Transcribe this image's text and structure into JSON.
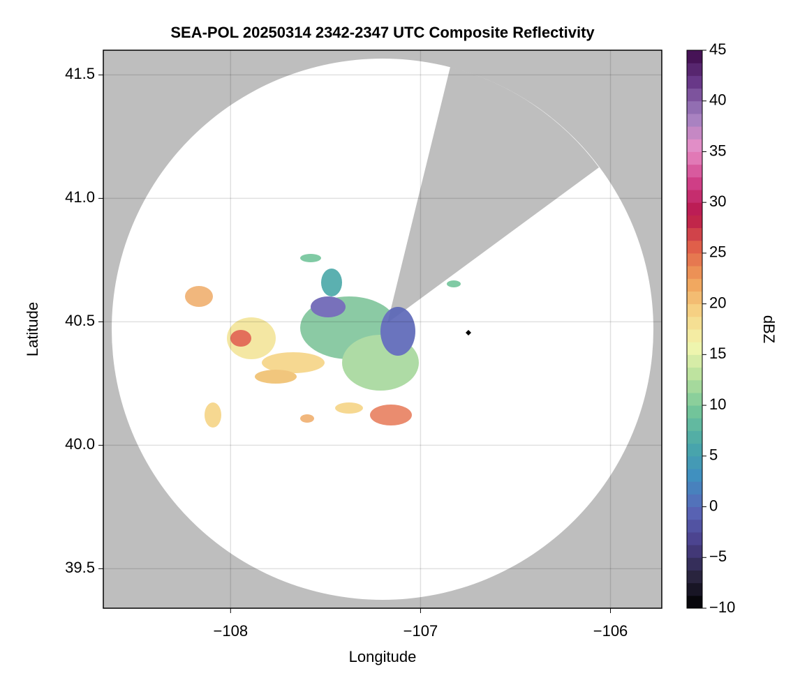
{
  "chart_data": {
    "type": "radar-map",
    "title": "SEA-POL 20250314 2342-2347 UTC Composite Reflectivity",
    "x_label": "Longitude",
    "y_label": "Latitude",
    "xlim": [
      -108.67,
      -105.73
    ],
    "xticks": [
      {
        "value": -108,
        "label": "−108"
      },
      {
        "value": -107,
        "label": "−107"
      },
      {
        "value": -106,
        "label": "−106"
      }
    ],
    "ylim": [
      39.34,
      41.6
    ],
    "yticks": [
      39.5,
      {
        "value": 40.0,
        "label": "40.0"
      },
      40.5,
      {
        "value": 41.0,
        "label": "41.0"
      },
      41.5
    ],
    "grid": true,
    "colorbar": {
      "label": "dBZ",
      "clim": [
        -10,
        45
      ],
      "levels": 44,
      "ticks": [
        {
          "value": -10,
          "label": "−10"
        },
        {
          "value": -5,
          "label": "−5"
        },
        0,
        5,
        10,
        15,
        20,
        25,
        30,
        35,
        40,
        45
      ],
      "colormap": [
        "#000000",
        "#2a2540",
        "#4a3f8a",
        "#5a66b8",
        "#3f8fc0",
        "#4aa8a8",
        "#72c49a",
        "#b5e09c",
        "#f3f7b0",
        "#f6d486",
        "#f0a05a",
        "#e0604a",
        "#b8164a",
        "#d0408a",
        "#e890c8",
        "#a080c0",
        "#6a3a8a",
        "#3d0a4a"
      ]
    }
  }
}
